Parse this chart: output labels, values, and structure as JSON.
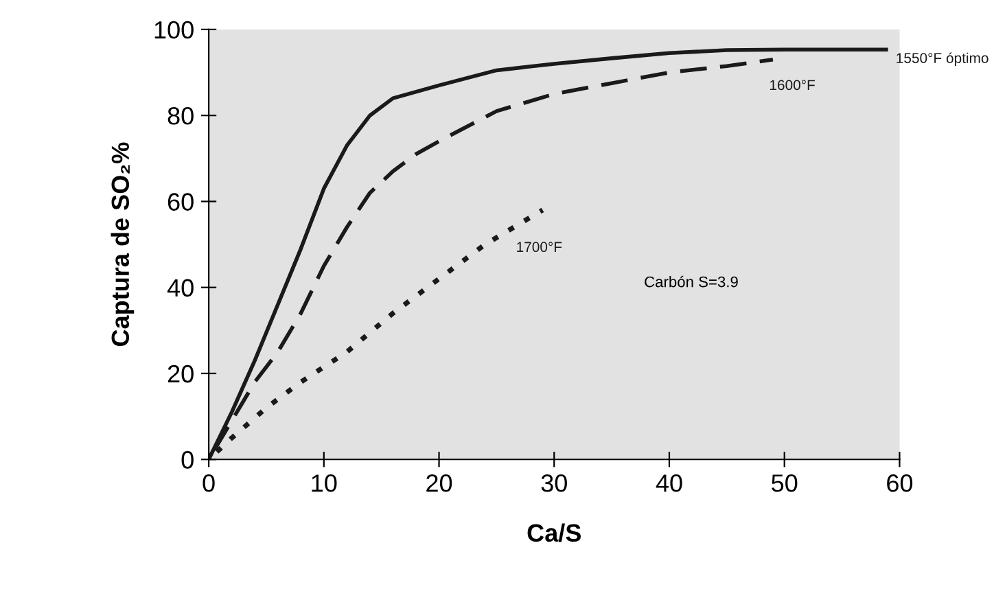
{
  "chart_data": {
    "type": "line",
    "xlabel": "Ca/S",
    "ylabel": "Captura de SO₂%",
    "xlim": [
      0,
      60
    ],
    "ylim": [
      0,
      100
    ],
    "xticks": [
      0,
      10,
      20,
      30,
      40,
      50,
      60
    ],
    "yticks": [
      0,
      20,
      40,
      60,
      80,
      100
    ],
    "grid": false,
    "legend": false,
    "marker": "none",
    "series": [
      {
        "name": "1550°F óptimo",
        "color": "#1a1a1a",
        "line_style": "solid",
        "x": [
          0,
          2,
          4,
          6,
          8,
          10,
          12,
          14,
          16,
          20,
          25,
          30,
          35,
          40,
          45,
          50,
          59
        ],
        "values": [
          0,
          11,
          23,
          36,
          49,
          63,
          73,
          80,
          84,
          87,
          90.5,
          92,
          93.3,
          94.5,
          95.2,
          95.3,
          95.3
        ]
      },
      {
        "name": "1600°F",
        "color": "#1a1a1a",
        "line_style": "dashed",
        "x": [
          0,
          2,
          4,
          6,
          8,
          10,
          12,
          14,
          16,
          18,
          20,
          25,
          30,
          35,
          40,
          45,
          49
        ],
        "values": [
          0,
          9,
          18,
          25,
          34,
          45,
          54,
          62,
          67,
          71,
          74,
          81,
          85,
          87.5,
          90,
          91.5,
          93
        ]
      },
      {
        "name": "1700°F",
        "color": "#1a1a1a",
        "line_style": "dotted",
        "x": [
          0,
          2,
          5,
          8,
          12,
          16,
          20,
          24,
          29
        ],
        "values": [
          0,
          5,
          12,
          18,
          25,
          34,
          42,
          50,
          58
        ]
      }
    ],
    "annotations": [
      "Carbón S=3.9"
    ]
  }
}
